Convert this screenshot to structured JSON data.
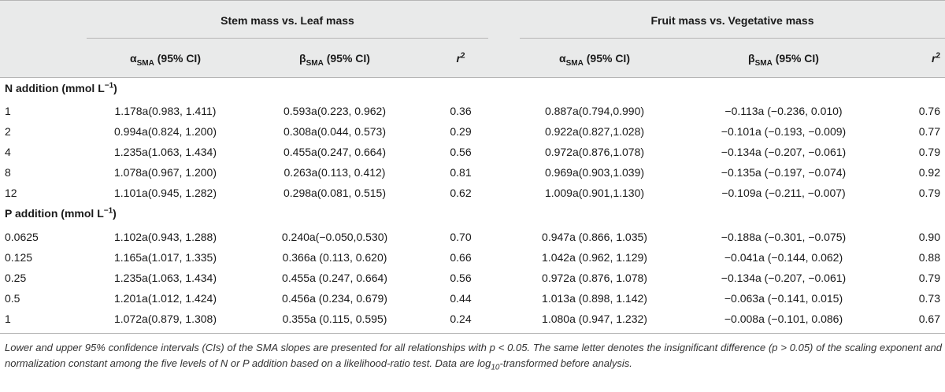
{
  "header": {
    "group1_title": "Stem mass vs. Leaf mass",
    "group2_title": "Fruit mass vs. Vegetative mass",
    "alpha_symbol": "α",
    "alpha_sub": "SMA",
    "beta_symbol": "β",
    "beta_sub": "SMA",
    "ci_label": " (95% CI)",
    "r_label": "r",
    "r_sup": "2"
  },
  "sections": [
    {
      "title_prefix": "N addition (mmol L",
      "title_sup": "−1",
      "title_suffix": ")",
      "rows": [
        {
          "level": "1",
          "alpha1": "1.178a(0.983, 1.411)",
          "beta1": "0.593a(0.223, 0.962)",
          "r1": "0.36",
          "alpha2": "0.887a(0.794,0.990)",
          "beta2": "−0.113a (−0.236, 0.010)",
          "r2": "0.76"
        },
        {
          "level": "2",
          "alpha1": "0.994a(0.824, 1.200)",
          "beta1": "0.308a(0.044, 0.573)",
          "r1": "0.29",
          "alpha2": "0.922a(0.827,1.028)",
          "beta2": "−0.101a (−0.193, −0.009)",
          "r2": "0.77"
        },
        {
          "level": "4",
          "alpha1": "1.235a(1.063, 1.434)",
          "beta1": "0.455a(0.247, 0.664)",
          "r1": "0.56",
          "alpha2": "0.972a(0.876,1.078)",
          "beta2": "−0.134a (−0.207, −0.061)",
          "r2": "0.79"
        },
        {
          "level": "8",
          "alpha1": "1.078a(0.967, 1.200)",
          "beta1": "0.263a(0.113, 0.412)",
          "r1": "0.81",
          "alpha2": "0.969a(0.903,1.039)",
          "beta2": "−0.135a (−0.197, −0.074)",
          "r2": "0.92"
        },
        {
          "level": "12",
          "alpha1": "1.101a(0.945, 1.282)",
          "beta1": "0.298a(0.081, 0.515)",
          "r1": "0.62",
          "alpha2": "1.009a(0.901,1.130)",
          "beta2": "−0.109a (−0.211, −0.007)",
          "r2": "0.79"
        }
      ]
    },
    {
      "title_prefix": "P addition (mmol L",
      "title_sup": "−1",
      "title_suffix": ")",
      "rows": [
        {
          "level": "0.0625",
          "alpha1": "1.102a(0.943, 1.288)",
          "beta1": "0.240a(−0.050,0.530)",
          "r1": "0.70",
          "alpha2": "0.947a (0.866, 1.035)",
          "beta2": "−0.188a (−0.301, −0.075)",
          "r2": "0.90"
        },
        {
          "level": "0.125",
          "alpha1": "1.165a(1.017, 1.335)",
          "beta1": "0.366a (0.113, 0.620)",
          "r1": "0.66",
          "alpha2": "1.042a (0.962, 1.129)",
          "beta2": "−0.041a (−0.144, 0.062)",
          "r2": "0.88"
        },
        {
          "level": "0.25",
          "alpha1": "1.235a(1.063, 1.434)",
          "beta1": "0.455a (0.247, 0.664)",
          "r1": "0.56",
          "alpha2": "0.972a (0.876, 1.078)",
          "beta2": "−0.134a (−0.207, −0.061)",
          "r2": "0.79"
        },
        {
          "level": "0.5",
          "alpha1": "1.201a(1.012, 1.424)",
          "beta1": "0.456a (0.234, 0.679)",
          "r1": "0.44",
          "alpha2": "1.013a (0.898, 1.142)",
          "beta2": "−0.063a (−0.141, 0.015)",
          "r2": "0.73"
        },
        {
          "level": "1",
          "alpha1": "1.072a(0.879, 1.308)",
          "beta1": "0.355a (0.115, 0.595)",
          "r1": "0.24",
          "alpha2": "1.080a (0.947, 1.232)",
          "beta2": "−0.008a (−0.101, 0.086)",
          "r2": "0.67"
        }
      ]
    }
  ],
  "footnote": {
    "part1": "Lower and upper 95% confidence intervals (CIs) of the SMA slopes are presented for all relationships with p < 0.05. The same letter denotes the insignificant difference (p > 0.05) of the scaling exponent and normalization constant among the five levels of N or P addition based on a likelihood-ratio test. Data are log",
    "sub": "10",
    "part2": "-transformed before analysis."
  }
}
